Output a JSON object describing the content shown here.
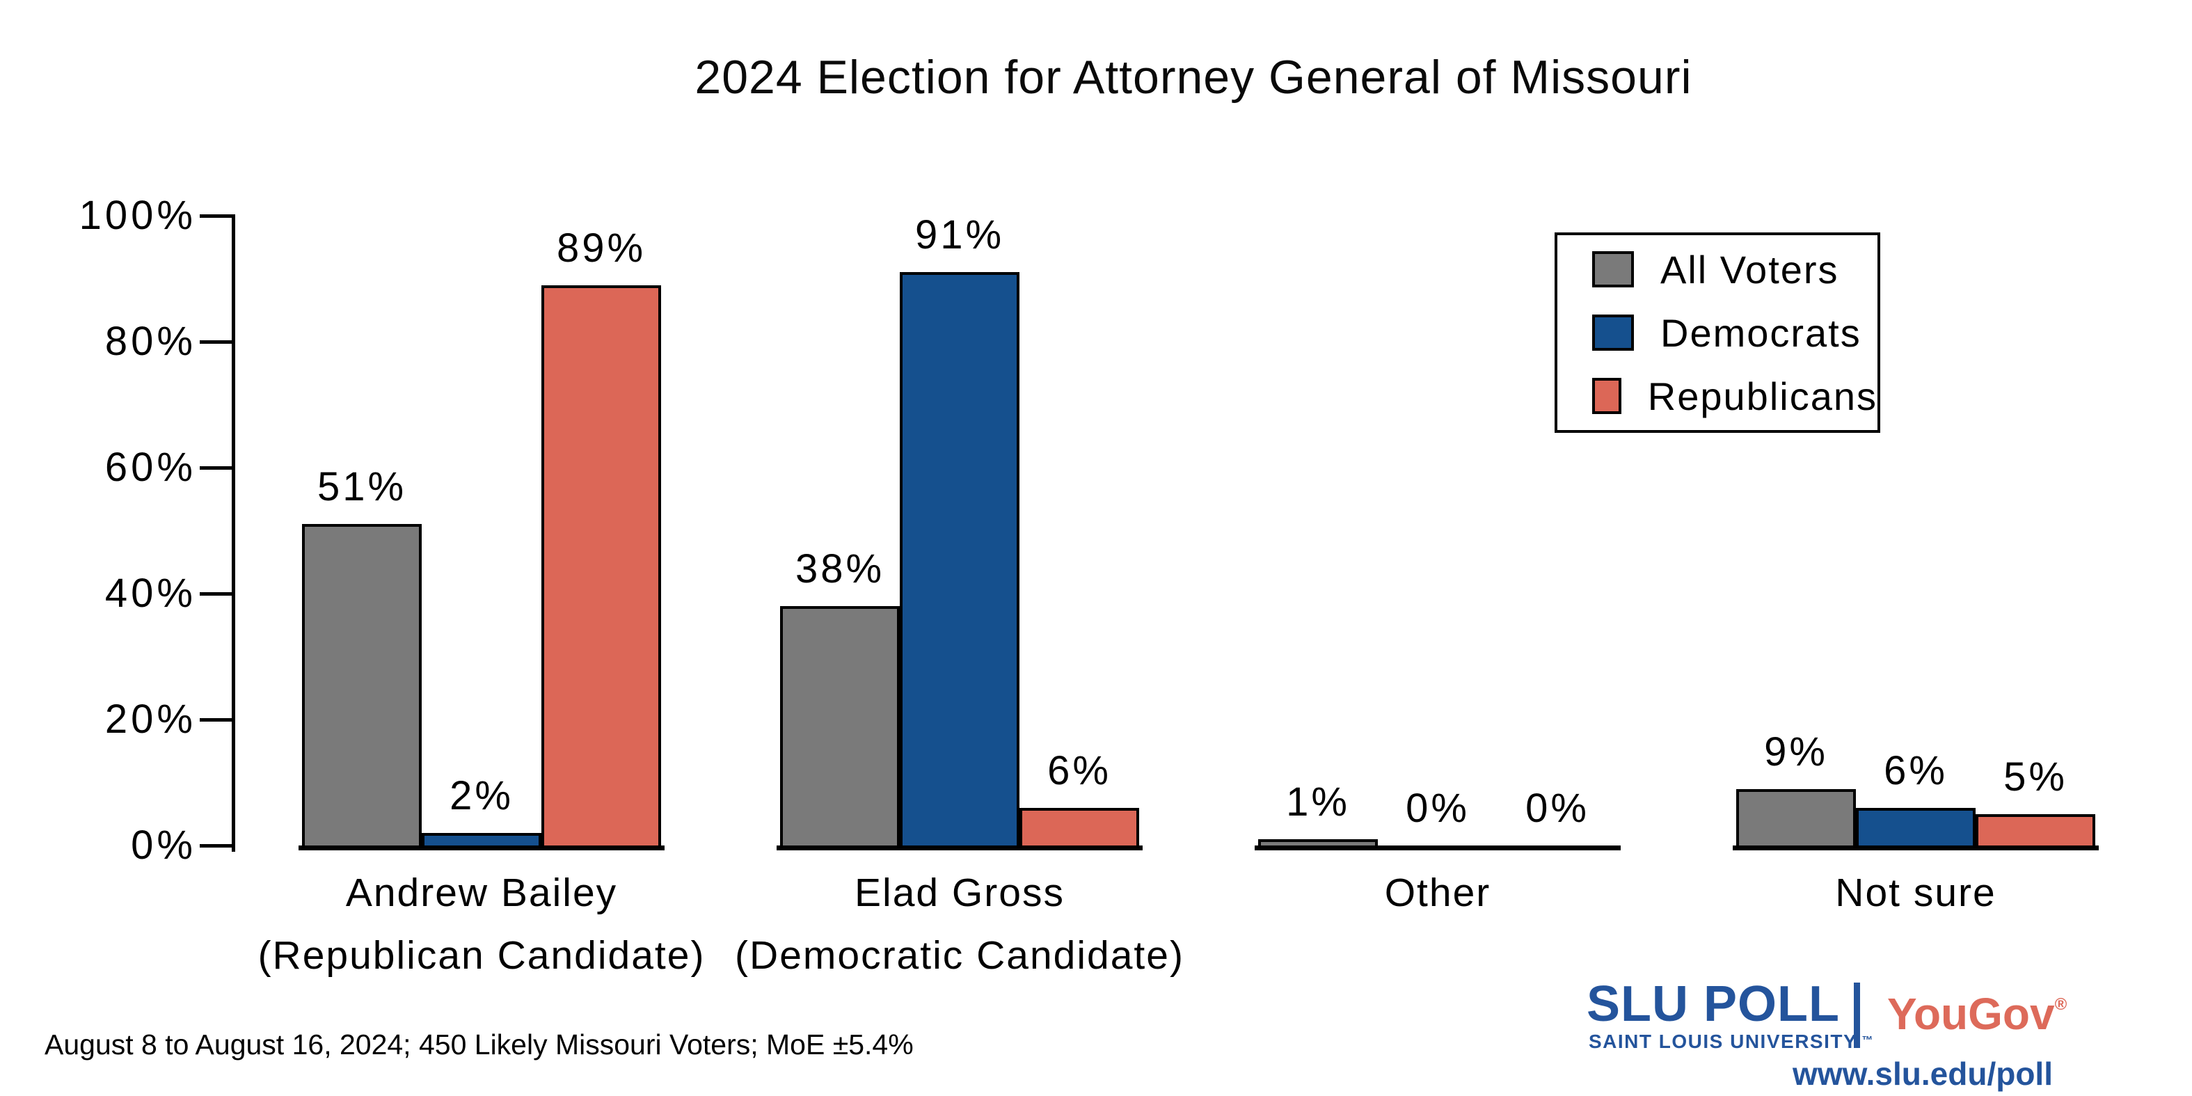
{
  "chart_data": {
    "type": "bar",
    "title": "2024 Election for Attorney General of Missouri",
    "categories": [
      {
        "label": "Andrew Bailey",
        "sublabel": "(Republican Candidate)"
      },
      {
        "label": "Elad Gross",
        "sublabel": "(Democratic Candidate)"
      },
      {
        "label": "Other",
        "sublabel": ""
      },
      {
        "label": "Not sure",
        "sublabel": ""
      }
    ],
    "series": [
      {
        "name": "All Voters",
        "color": "#7a7a7a",
        "values": [
          51,
          38,
          1,
          9
        ]
      },
      {
        "name": "Democrats",
        "color": "#15508e",
        "values": [
          2,
          91,
          0,
          6
        ]
      },
      {
        "name": "Republicans",
        "color": "#dc6757",
        "values": [
          89,
          6,
          0,
          5
        ]
      }
    ],
    "ylim": [
      0,
      100
    ],
    "ytick_step": 20,
    "yticks": [
      "0%",
      "20%",
      "40%",
      "60%",
      "80%",
      "100%"
    ],
    "value_label_format": "{v}%",
    "grid": false,
    "legend_position": "top-right"
  },
  "footer": {
    "note": "August 8 to August 16, 2024; 450 Likely Missouri Voters; MoE ±5.4%"
  },
  "branding": {
    "slu_wordmark": "SLU POLL",
    "slu_subtitle": "SAINT LOUIS UNIVERSITY.",
    "slu_trademark": "™",
    "yougov_wordmark": "YouGov",
    "yougov_registered": "®",
    "url": "www.slu.edu/poll",
    "slu_blue": "#24549c",
    "yougov_red": "#dd6a5a"
  }
}
